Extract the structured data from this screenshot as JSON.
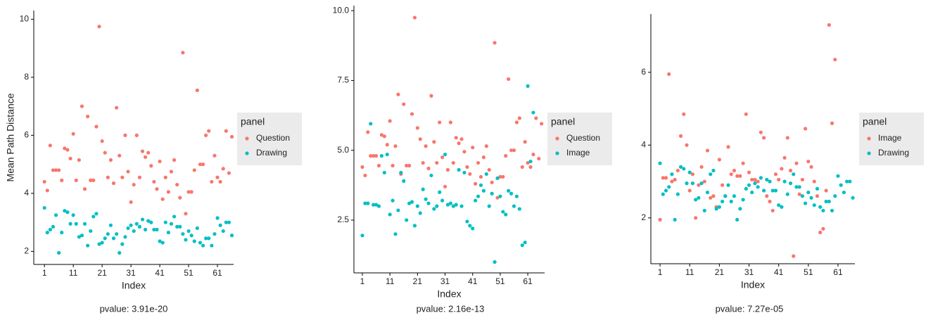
{
  "chart_data": [
    {
      "type": "scatter",
      "x_label": "Index",
      "y_label": "Mean Path Distance",
      "legend_title": "panel",
      "caption": "pvalue: 3.91e-20",
      "xlim": [
        -2.7,
        66.6
      ],
      "ylim": [
        1.55,
        10.3
      ],
      "xticks": [
        1,
        11,
        21,
        31,
        41,
        51,
        61
      ],
      "yticks": [
        2,
        4,
        6,
        8,
        10
      ],
      "series": [
        {
          "name": "Question",
          "color": "#F8766D",
          "values": [
            4.4,
            4.1,
            5.65,
            4.8,
            4.8,
            4.8,
            4.45,
            5.55,
            5.5,
            5.2,
            6.05,
            4.45,
            5.15,
            7.0,
            4.15,
            6.65,
            4.45,
            4.45,
            6.3,
            9.75,
            5.8,
            5.4,
            4.55,
            5.15,
            4.35,
            6.95,
            5.3,
            4.55,
            6.0,
            4.75,
            3.7,
            4.3,
            6.0,
            4.55,
            5.45,
            5.25,
            5.4,
            4.95,
            4.4,
            4.15,
            5.1,
            3.8,
            4.55,
            4.05,
            4.75,
            5.15,
            4.3,
            3.85,
            8.85,
            3.3,
            4.05,
            4.05,
            4.8,
            7.55,
            5.0,
            5.0,
            6.0,
            6.15,
            4.4,
            5.3,
            4.55,
            4.4,
            4.85,
            6.15,
            4.7,
            5.95
          ]
        },
        {
          "name": "Drawing",
          "color": "#00BFC4",
          "values": [
            3.5,
            2.65,
            2.75,
            2.85,
            3.25,
            1.95,
            2.65,
            3.4,
            3.35,
            2.95,
            3.25,
            2.95,
            2.5,
            2.55,
            2.95,
            2.2,
            2.7,
            3.2,
            3.3,
            2.25,
            2.3,
            2.45,
            2.6,
            2.9,
            2.45,
            2.6,
            1.95,
            2.25,
            2.5,
            2.8,
            2.9,
            2.7,
            2.95,
            2.85,
            3.1,
            2.75,
            3.05,
            3.0,
            2.75,
            2.75,
            2.35,
            2.3,
            3.0,
            2.65,
            2.95,
            3.2,
            2.85,
            2.85,
            2.6,
            2.4,
            2.7,
            2.55,
            2.35,
            2.8,
            2.3,
            2.2,
            2.45,
            2.45,
            2.2,
            2.6,
            3.15,
            2.9,
            2.7,
            3.0,
            3.0,
            2.55
          ]
        }
      ]
    },
    {
      "type": "scatter",
      "x_label": "Index",
      "legend_title": "panel",
      "caption": "pvalue: 2.16e-13",
      "xlim": [
        -2.06,
        67.1
      ],
      "ylim": [
        0.61,
        10.18
      ],
      "xticks": [
        1,
        11,
        21,
        31,
        41,
        51,
        61
      ],
      "yticks": [
        {
          "value": 2.5,
          "label": "2.5"
        },
        {
          "value": 5,
          "label": "5.0"
        },
        {
          "value": 7.5,
          "label": "7.5"
        },
        {
          "value": 10,
          "label": "10.0"
        }
      ],
      "series": [
        {
          "name": "Question",
          "color": "#F8766D",
          "values": [
            4.4,
            4.1,
            5.65,
            4.8,
            4.8,
            4.8,
            4.45,
            5.55,
            5.5,
            5.2,
            6.05,
            4.45,
            5.15,
            7.0,
            4.15,
            6.65,
            4.45,
            4.45,
            6.3,
            9.75,
            5.8,
            5.4,
            4.55,
            5.15,
            4.35,
            6.95,
            5.3,
            4.55,
            6.0,
            4.75,
            3.7,
            4.3,
            6.0,
            4.55,
            5.45,
            5.25,
            5.4,
            4.95,
            4.4,
            4.15,
            5.1,
            3.8,
            4.55,
            4.05,
            4.75,
            5.15,
            4.3,
            3.85,
            8.85,
            3.3,
            4.05,
            4.05,
            4.8,
            7.55,
            5.0,
            5.0,
            6.0,
            6.15,
            4.4,
            5.3,
            4.55,
            4.4,
            4.85,
            6.15,
            4.7,
            5.95
          ]
        },
        {
          "name": "Image",
          "color": "#00BFC4",
          "values": [
            1.95,
            3.1,
            3.1,
            5.95,
            3.05,
            3.05,
            3.0,
            4.8,
            4.2,
            4.85,
            2.7,
            3.2,
            2.0,
            2.85,
            4.2,
            3.9,
            2.5,
            3.1,
            3.15,
            2.3,
            3.0,
            2.75,
            3.6,
            3.25,
            3.1,
            4.1,
            2.9,
            3.0,
            3.5,
            3.2,
            4.85,
            3.05,
            3.1,
            3.0,
            3.05,
            4.3,
            3.0,
            4.2,
            2.45,
            2.3,
            2.2,
            3.2,
            3.35,
            3.75,
            3.55,
            4.15,
            3.0,
            3.45,
            1.0,
            4.0,
            3.35,
            2.8,
            2.7,
            3.55,
            3.45,
            3.0,
            3.35,
            2.9,
            1.6,
            1.7,
            7.3,
            4.6,
            6.35
          ]
        }
      ]
    },
    {
      "type": "scatter",
      "x_label": "Index",
      "legend_title": "panel",
      "caption": "pvalue: 7.27e-05",
      "xlim": [
        -2.1,
        66.7
      ],
      "ylim": [
        0.74,
        7.6
      ],
      "xticks": [
        1,
        11,
        21,
        31,
        41,
        51,
        61
      ],
      "yticks": [
        2,
        4,
        6
      ],
      "series": [
        {
          "name": "Image",
          "color": "#F8766D",
          "values": [
            1.95,
            3.1,
            3.1,
            5.95,
            3.0,
            3.05,
            3.3,
            4.25,
            4.85,
            4.0,
            2.75,
            3.2,
            2.0,
            2.9,
            3.4,
            3.0,
            3.85,
            2.55,
            2.6,
            2.3,
            3.6,
            2.9,
            2.6,
            3.95,
            3.2,
            3.3,
            3.15,
            3.15,
            3.5,
            4.85,
            3.25,
            3.05,
            3.05,
            3.0,
            4.35,
            4.2,
            2.6,
            2.45,
            2.2,
            3.2,
            3.05,
            3.35,
            3.65,
            4.2,
            3.3,
            0.95,
            3.5,
            2.65,
            3.05,
            4.45,
            3.55,
            3.4,
            3.0,
            2.6,
            1.6,
            1.7,
            2.75,
            7.3,
            4.6,
            6.35
          ]
        },
        {
          "name": "Drawing",
          "color": "#00BFC4",
          "values": [
            3.5,
            2.65,
            2.75,
            2.85,
            3.2,
            1.95,
            2.65,
            3.4,
            3.35,
            2.95,
            3.25,
            2.95,
            2.5,
            2.55,
            2.95,
            2.2,
            2.7,
            3.2,
            3.3,
            2.25,
            2.3,
            2.45,
            2.6,
            2.9,
            2.45,
            2.6,
            1.95,
            2.25,
            2.5,
            2.8,
            2.9,
            2.7,
            2.95,
            2.85,
            3.1,
            2.75,
            3.05,
            3.0,
            2.75,
            2.75,
            2.35,
            2.3,
            3.0,
            2.65,
            2.95,
            3.2,
            2.85,
            2.85,
            2.6,
            2.4,
            2.7,
            2.55,
            2.35,
            2.8,
            2.3,
            2.2,
            2.45,
            2.45,
            2.2,
            2.6,
            3.15,
            2.9,
            2.7,
            3.0,
            3.0,
            2.55
          ]
        }
      ]
    }
  ]
}
